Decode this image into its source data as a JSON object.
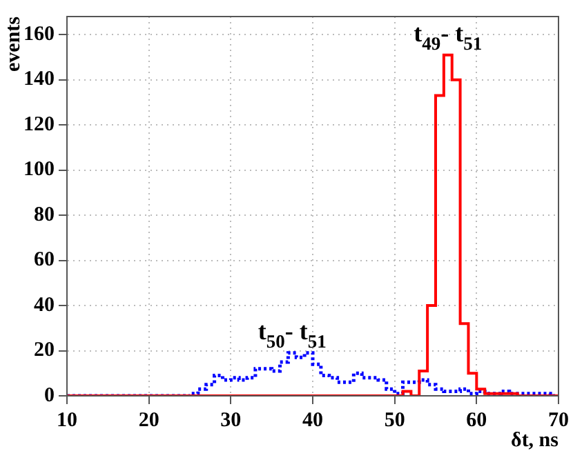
{
  "chart_data": {
    "type": "histogram",
    "xlabel": "δt, ns",
    "ylabel": "events",
    "bins": [
      10,
      11,
      12,
      13,
      14,
      15,
      16,
      17,
      18,
      19,
      20,
      21,
      22,
      23,
      24,
      25,
      26,
      27,
      28,
      29,
      30,
      31,
      32,
      33,
      34,
      35,
      36,
      37,
      38,
      39,
      40,
      41,
      42,
      43,
      44,
      45,
      46,
      47,
      48,
      49,
      50,
      51,
      52,
      53,
      54,
      55,
      56,
      57,
      58,
      59,
      60,
      61,
      62,
      63,
      64,
      65,
      66,
      67,
      68,
      69,
      70
    ],
    "series": [
      {
        "color": "#ff0000",
        "line_style": "solid",
        "values": [
          0,
          0,
          0,
          0,
          0,
          0,
          0,
          0,
          0,
          0,
          0,
          0,
          0,
          0,
          0,
          0,
          0,
          0,
          0,
          0,
          0,
          0,
          0,
          0,
          0,
          0,
          0,
          0,
          0,
          0,
          0,
          0,
          0,
          0,
          0,
          0,
          0,
          0,
          0,
          0,
          0,
          2,
          0,
          11,
          40,
          133,
          151,
          140,
          32,
          10,
          3,
          1,
          1,
          1,
          1,
          0,
          0,
          0,
          0,
          0
        ]
      },
      {
        "color": "#0000ff",
        "line_style": "dotted",
        "values": [
          0,
          0,
          0,
          0,
          0,
          0,
          0,
          0,
          0,
          0,
          0,
          0,
          0,
          0,
          0,
          1,
          3,
          5,
          9,
          7,
          8,
          7,
          8,
          12,
          12,
          11,
          15,
          19,
          17,
          19,
          14,
          9,
          8,
          6,
          6,
          10,
          8,
          8,
          7,
          3,
          1,
          6,
          6,
          7,
          5,
          3,
          2,
          2,
          3,
          1,
          2,
          1,
          1,
          2,
          1,
          1,
          1,
          1,
          1,
          0
        ]
      }
    ],
    "annotations": [
      "t$_{49}$- t$_{51}$",
      "t$_{50}$- t$_{51}$"
    ],
    "xlim": [
      10,
      70
    ],
    "xticks": [
      10,
      20,
      30,
      40,
      50,
      60,
      70
    ],
    "ylim": [
      0,
      168
    ],
    "yticks": [
      0,
      20,
      40,
      60,
      80,
      100,
      120,
      140,
      160
    ],
    "grid": true,
    "legend": false
  }
}
